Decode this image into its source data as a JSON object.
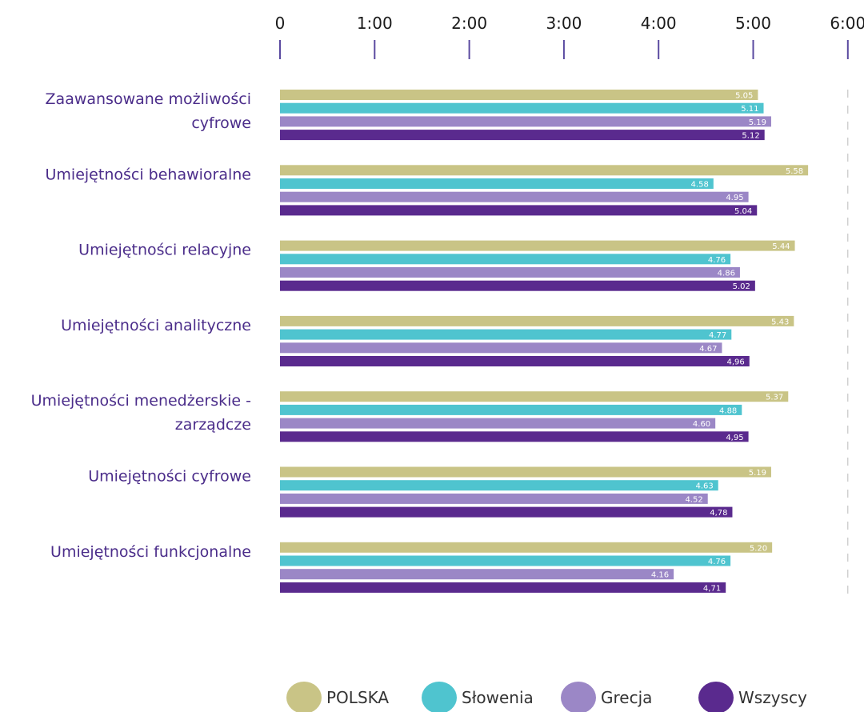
{
  "chart_data": {
    "type": "bar",
    "orientation": "horizontal",
    "xlim": [
      0,
      6
    ],
    "ticks": [
      0,
      1,
      2,
      3,
      4,
      5,
      6
    ],
    "tick_labels": [
      "0",
      "1:00",
      "2:00",
      "3:00",
      "4:00",
      "5:00",
      "6:00"
    ],
    "grid": false,
    "reference_line_at": 6,
    "legend_position": "bottom",
    "categories": [
      [
        "Zaawansowane możliwości",
        "cyfrowe"
      ],
      [
        "Umiejętności behawioralne"
      ],
      [
        "Umiejętności relacyjne"
      ],
      [
        "Umiejętności analityczne"
      ],
      [
        "Umiejętności menedżerskie -",
        "zarządcze"
      ],
      [
        "Umiejętności cyfrowe"
      ],
      [
        "Umiejętności funkcjonalne"
      ]
    ],
    "series": [
      {
        "name": "POLSKA",
        "color": "#c9c486",
        "values": [
          5.05,
          5.58,
          5.44,
          5.43,
          5.37,
          5.19,
          5.2
        ],
        "labels": [
          "5.05",
          "5.58",
          "5.44",
          "5.43",
          "5.37",
          "5.19",
          "5.20"
        ]
      },
      {
        "name": "Słowenia",
        "color": "#4fc4cf",
        "values": [
          5.11,
          4.58,
          4.76,
          4.77,
          4.88,
          4.63,
          4.76
        ],
        "labels": [
          "5.11",
          "4.58",
          "4.76",
          "4.77",
          "4.88",
          "4.63",
          "4.76"
        ]
      },
      {
        "name": "Grecja",
        "color": "#9b87c6",
        "values": [
          5.19,
          4.95,
          4.86,
          4.67,
          4.6,
          4.52,
          4.16
        ],
        "labels": [
          "5.19",
          "4.95",
          "4.86",
          "4.67",
          "4.60",
          "4.52",
          "4.16"
        ]
      },
      {
        "name": "Wszyscy",
        "color": "#5a2a8e",
        "values": [
          5.12,
          5.04,
          5.02,
          4.96,
          4.95,
          4.78,
          4.71
        ],
        "labels": [
          "5.12",
          "5.04",
          "5.02",
          "4,96",
          "4,95",
          "4,78",
          "4,71"
        ]
      }
    ]
  }
}
